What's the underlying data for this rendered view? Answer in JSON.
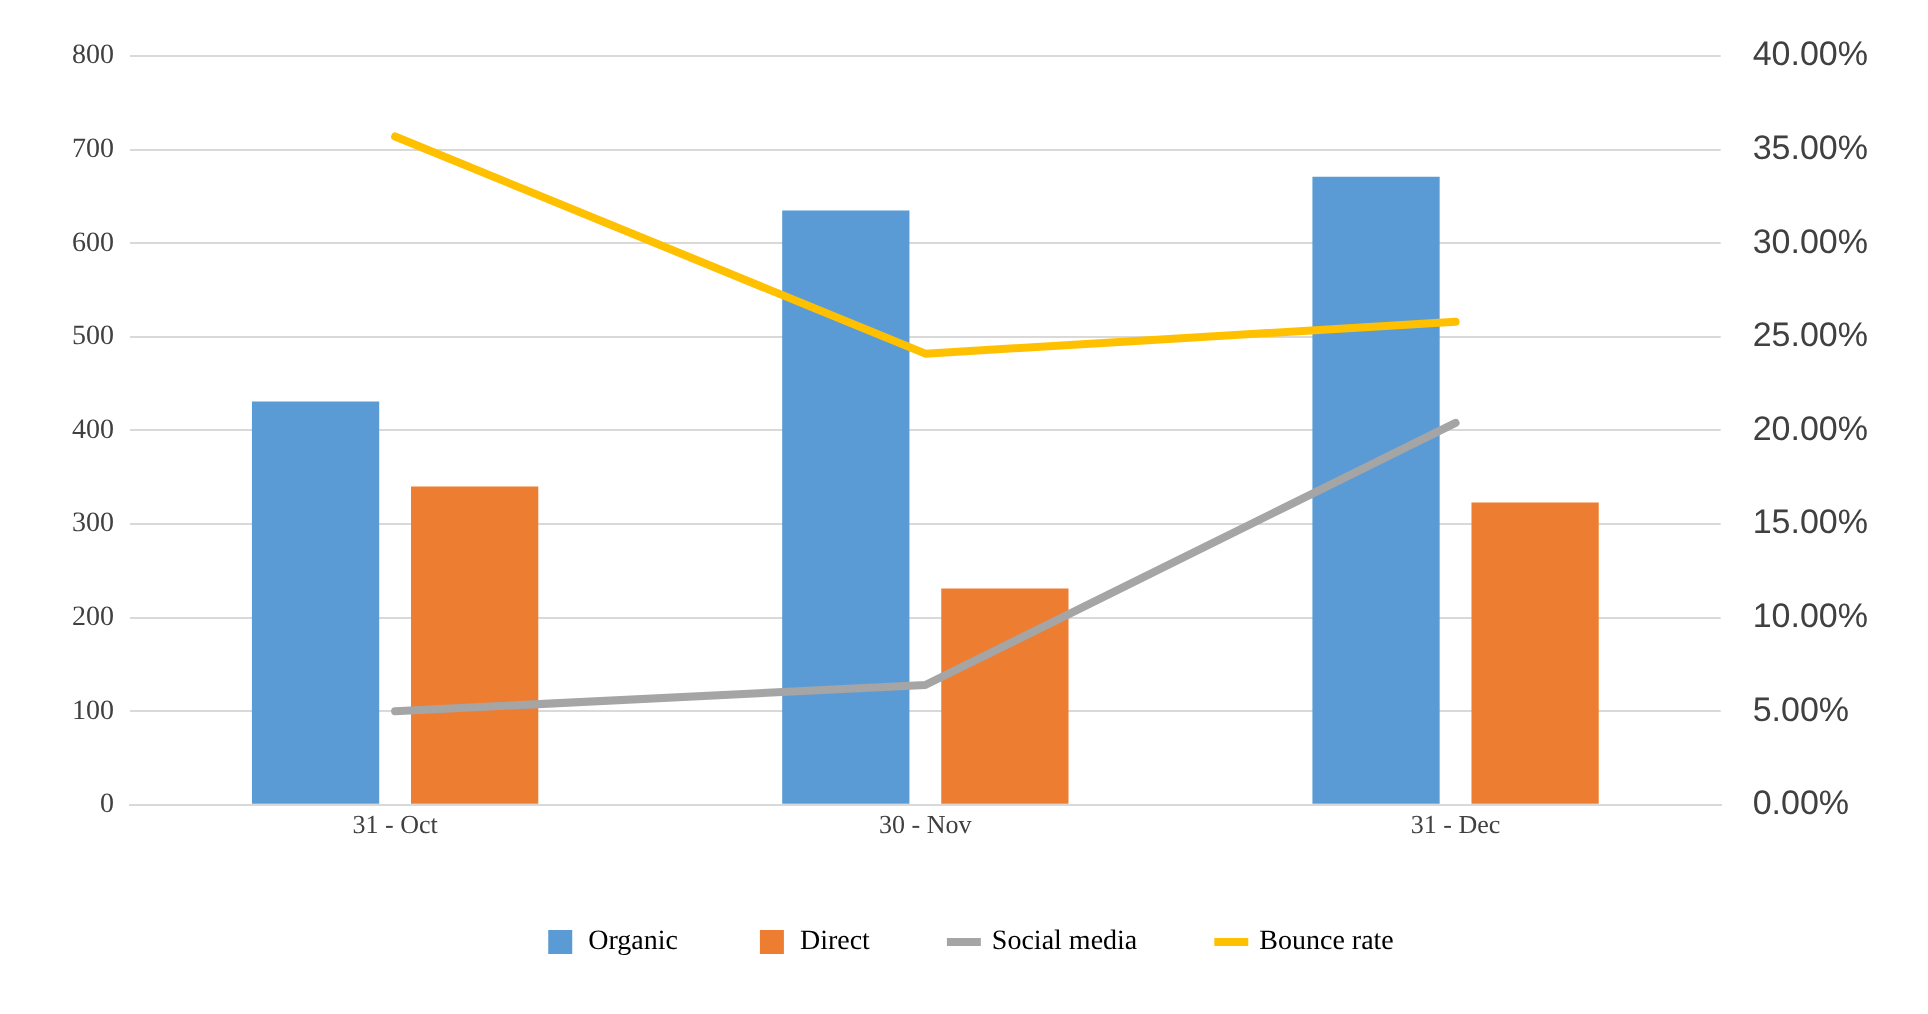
{
  "chart_data": {
    "type": "bar",
    "categories": [
      "31 - Oct",
      "30 - Nov",
      "31 - Dec"
    ],
    "series": [
      {
        "name": "Organic",
        "color": "#5b9bd5",
        "values": [
          431,
          635,
          671
        ]
      },
      {
        "name": "Direct",
        "color": "#ed7d31",
        "values": [
          340,
          231,
          323
        ]
      },
      {
        "name": "Social media",
        "type": "line",
        "color": "#a5a5a5",
        "values": [
          100,
          128,
          408
        ]
      },
      {
        "name": "Bounce rate",
        "type": "line",
        "axis": "y2",
        "color": "#ffc000",
        "values": [
          35.7,
          24.1,
          25.8
        ]
      }
    ],
    "ylim": [
      0,
      800
    ],
    "yticks": [
      0,
      100,
      200,
      300,
      400,
      500,
      600,
      700,
      800
    ],
    "y2lim": [
      0,
      40
    ],
    "y2ticks": [
      {
        "value": 0,
        "label": "0.00%"
      },
      {
        "value": 5,
        "label": "5.00%"
      },
      {
        "value": 10,
        "label": "10.00%"
      },
      {
        "value": 15,
        "label": "15.00%"
      },
      {
        "value": 20,
        "label": "20.00%"
      },
      {
        "value": 25,
        "label": "25.00%"
      },
      {
        "value": 30,
        "label": "30.00%"
      },
      {
        "value": 35,
        "label": "35.00%"
      },
      {
        "value": 40,
        "label": "40.00%"
      }
    ],
    "grid": "y",
    "legend": "bottom",
    "marker": "none",
    "line_style": "solid"
  }
}
